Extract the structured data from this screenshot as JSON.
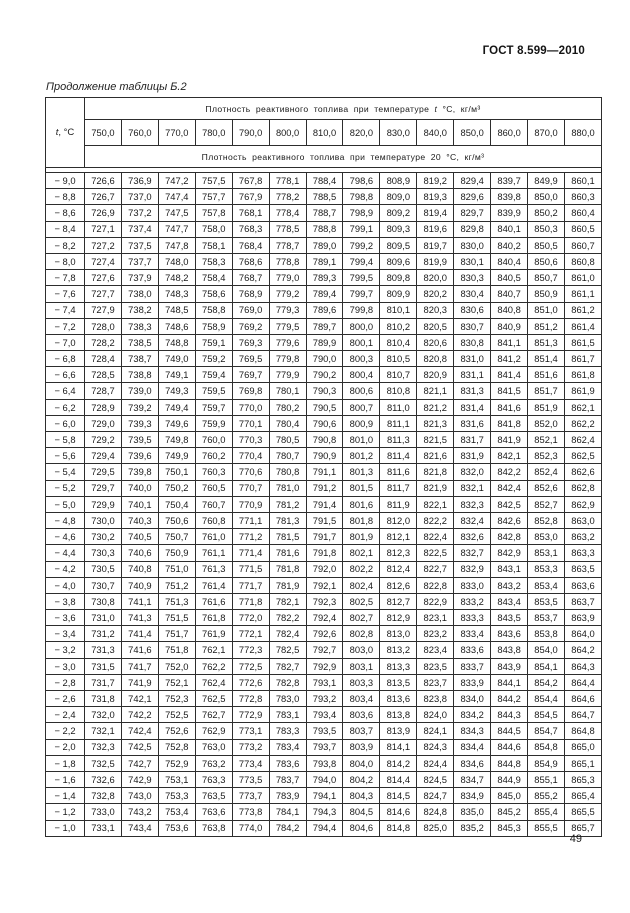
{
  "header": {
    "document_number": "ГОСТ 8.599—2010"
  },
  "caption": "Продолжение таблицы Б.2",
  "footer": {
    "page_number": "49"
  },
  "table": {
    "t_label_var": "t",
    "t_label_rest": ", °С",
    "top_header_prefix": "Плотность реактивного топлива при температуре ",
    "top_header_var": "t",
    "top_header_suffix": " °С, кг/м³",
    "sub_header": "Плотность реактивного топлива при температуре 20 °С, кг/м³",
    "temperatures": [
      "750,0",
      "760,0",
      "770,0",
      "780,0",
      "790,0",
      "800,0",
      "810,0",
      "820,0",
      "830,0",
      "840,0",
      "850,0",
      "860,0",
      "870,0",
      "880,0"
    ],
    "rows": [
      {
        "t": "− 9,0",
        "values": [
          "726,6",
          "736,9",
          "747,2",
          "757,5",
          "767,8",
          "778,1",
          "788,4",
          "798,6",
          "808,9",
          "819,2",
          "829,4",
          "839,7",
          "849,9",
          "860,1"
        ]
      },
      {
        "t": "− 8,8",
        "values": [
          "726,7",
          "737,0",
          "747,4",
          "757,7",
          "767,9",
          "778,2",
          "788,5",
          "798,8",
          "809,0",
          "819,3",
          "829,6",
          "839,8",
          "850,0",
          "860,3"
        ]
      },
      {
        "t": "− 8,6",
        "values": [
          "726,9",
          "737,2",
          "747,5",
          "757,8",
          "768,1",
          "778,4",
          "788,7",
          "798,9",
          "809,2",
          "819,4",
          "829,7",
          "839,9",
          "850,2",
          "860,4"
        ]
      },
      {
        "t": "− 8,4",
        "values": [
          "727,1",
          "737,4",
          "747,7",
          "758,0",
          "768,3",
          "778,5",
          "788,8",
          "799,1",
          "809,3",
          "819,6",
          "829,8",
          "840,1",
          "850,3",
          "860,5"
        ]
      },
      {
        "t": "− 8,2",
        "values": [
          "727,2",
          "737,5",
          "747,8",
          "758,1",
          "768,4",
          "778,7",
          "789,0",
          "799,2",
          "809,5",
          "819,7",
          "830,0",
          "840,2",
          "850,5",
          "860,7"
        ]
      },
      {
        "t": "− 8,0",
        "values": [
          "727,4",
          "737,7",
          "748,0",
          "758,3",
          "768,6",
          "778,8",
          "789,1",
          "799,4",
          "809,6",
          "819,9",
          "830,1",
          "840,4",
          "850,6",
          "860,8"
        ]
      },
      {
        "t": "− 7,8",
        "values": [
          "727,6",
          "737,9",
          "748,2",
          "758,4",
          "768,7",
          "779,0",
          "789,3",
          "799,5",
          "809,8",
          "820,0",
          "830,3",
          "840,5",
          "850,7",
          "861,0"
        ]
      },
      {
        "t": "− 7,6",
        "values": [
          "727,7",
          "738,0",
          "748,3",
          "758,6",
          "768,9",
          "779,2",
          "789,4",
          "799,7",
          "809,9",
          "820,2",
          "830,4",
          "840,7",
          "850,9",
          "861,1"
        ]
      },
      {
        "t": "− 7,4",
        "values": [
          "727,9",
          "738,2",
          "748,5",
          "758,8",
          "769,0",
          "779,3",
          "789,6",
          "799,8",
          "810,1",
          "820,3",
          "830,6",
          "840,8",
          "851,0",
          "861,2"
        ]
      },
      {
        "t": "− 7,2",
        "values": [
          "728,0",
          "738,3",
          "748,6",
          "758,9",
          "769,2",
          "779,5",
          "789,7",
          "800,0",
          "810,2",
          "820,5",
          "830,7",
          "840,9",
          "851,2",
          "861,4"
        ]
      },
      {
        "t": "− 7,0",
        "values": [
          "728,2",
          "738,5",
          "748,8",
          "759,1",
          "769,3",
          "779,6",
          "789,9",
          "800,1",
          "810,4",
          "820,6",
          "830,8",
          "841,1",
          "851,3",
          "861,5"
        ]
      },
      {
        "t": "− 6,8",
        "values": [
          "728,4",
          "738,7",
          "749,0",
          "759,2",
          "769,5",
          "779,8",
          "790,0",
          "800,3",
          "810,5",
          "820,8",
          "831,0",
          "841,2",
          "851,4",
          "861,7"
        ]
      },
      {
        "t": "− 6,6",
        "values": [
          "728,5",
          "738,8",
          "749,1",
          "759,4",
          "769,7",
          "779,9",
          "790,2",
          "800,4",
          "810,7",
          "820,9",
          "831,1",
          "841,4",
          "851,6",
          "861,8"
        ]
      },
      {
        "t": "− 6,4",
        "values": [
          "728,7",
          "739,0",
          "749,3",
          "759,5",
          "769,8",
          "780,1",
          "790,3",
          "800,6",
          "810,8",
          "821,1",
          "831,3",
          "841,5",
          "851,7",
          "861,9"
        ]
      },
      {
        "t": "− 6,2",
        "values": [
          "728,9",
          "739,2",
          "749,4",
          "759,7",
          "770,0",
          "780,2",
          "790,5",
          "800,7",
          "811,0",
          "821,2",
          "831,4",
          "841,6",
          "851,9",
          "862,1"
        ]
      },
      {
        "t": "− 6,0",
        "values": [
          "729,0",
          "739,3",
          "749,6",
          "759,9",
          "770,1",
          "780,4",
          "790,6",
          "800,9",
          "811,1",
          "821,3",
          "831,6",
          "841,8",
          "852,0",
          "862,2"
        ]
      },
      {
        "t": "− 5,8",
        "values": [
          "729,2",
          "739,5",
          "749,8",
          "760,0",
          "770,3",
          "780,5",
          "790,8",
          "801,0",
          "811,3",
          "821,5",
          "831,7",
          "841,9",
          "852,1",
          "862,4"
        ]
      },
      {
        "t": "− 5,6",
        "values": [
          "729,4",
          "739,6",
          "749,9",
          "760,2",
          "770,4",
          "780,7",
          "790,9",
          "801,2",
          "811,4",
          "821,6",
          "831,9",
          "842,1",
          "852,3",
          "862,5"
        ]
      },
      {
        "t": "− 5,4",
        "values": [
          "729,5",
          "739,8",
          "750,1",
          "760,3",
          "770,6",
          "780,8",
          "791,1",
          "801,3",
          "811,6",
          "821,8",
          "832,0",
          "842,2",
          "852,4",
          "862,6"
        ]
      },
      {
        "t": "− 5,2",
        "values": [
          "729,7",
          "740,0",
          "750,2",
          "760,5",
          "770,7",
          "781,0",
          "791,2",
          "801,5",
          "811,7",
          "821,9",
          "832,1",
          "842,4",
          "852,6",
          "862,8"
        ]
      },
      {
        "t": "− 5,0",
        "values": [
          "729,9",
          "740,1",
          "750,4",
          "760,7",
          "770,9",
          "781,2",
          "791,4",
          "801,6",
          "811,9",
          "822,1",
          "832,3",
          "842,5",
          "852,7",
          "862,9"
        ]
      },
      {
        "t": "− 4,8",
        "values": [
          "730,0",
          "740,3",
          "750,6",
          "760,8",
          "771,1",
          "781,3",
          "791,5",
          "801,8",
          "812,0",
          "822,2",
          "832,4",
          "842,6",
          "852,8",
          "863,0"
        ]
      },
      {
        "t": "− 4,6",
        "values": [
          "730,2",
          "740,5",
          "750,7",
          "761,0",
          "771,2",
          "781,5",
          "791,7",
          "801,9",
          "812,1",
          "822,4",
          "832,6",
          "842,8",
          "853,0",
          "863,2"
        ]
      },
      {
        "t": "− 4,4",
        "values": [
          "730,3",
          "740,6",
          "750,9",
          "761,1",
          "771,4",
          "781,6",
          "791,8",
          "802,1",
          "812,3",
          "822,5",
          "832,7",
          "842,9",
          "853,1",
          "863,3"
        ]
      },
      {
        "t": "− 4,2",
        "values": [
          "730,5",
          "740,8",
          "751,0",
          "761,3",
          "771,5",
          "781,8",
          "792,0",
          "802,2",
          "812,4",
          "822,7",
          "832,9",
          "843,1",
          "853,3",
          "863,5"
        ]
      },
      {
        "t": "− 4,0",
        "values": [
          "730,7",
          "740,9",
          "751,2",
          "761,4",
          "771,7",
          "781,9",
          "792,1",
          "802,4",
          "812,6",
          "822,8",
          "833,0",
          "843,2",
          "853,4",
          "863,6"
        ]
      },
      {
        "t": "− 3,8",
        "values": [
          "730,8",
          "741,1",
          "751,3",
          "761,6",
          "771,8",
          "782,1",
          "792,3",
          "802,5",
          "812,7",
          "822,9",
          "833,2",
          "843,4",
          "853,5",
          "863,7"
        ]
      },
      {
        "t": "− 3,6",
        "values": [
          "731,0",
          "741,3",
          "751,5",
          "761,8",
          "772,0",
          "782,2",
          "792,4",
          "802,7",
          "812,9",
          "823,1",
          "833,3",
          "843,5",
          "853,7",
          "863,9"
        ]
      },
      {
        "t": "− 3,4",
        "values": [
          "731,2",
          "741,4",
          "751,7",
          "761,9",
          "772,1",
          "782,4",
          "792,6",
          "802,8",
          "813,0",
          "823,2",
          "833,4",
          "843,6",
          "853,8",
          "864,0"
        ]
      },
      {
        "t": "− 3,2",
        "values": [
          "731,3",
          "741,6",
          "751,8",
          "762,1",
          "772,3",
          "782,5",
          "792,7",
          "803,0",
          "813,2",
          "823,4",
          "833,6",
          "843,8",
          "854,0",
          "864,2"
        ]
      },
      {
        "t": "− 3,0",
        "values": [
          "731,5",
          "741,7",
          "752,0",
          "762,2",
          "772,5",
          "782,7",
          "792,9",
          "803,1",
          "813,3",
          "823,5",
          "833,7",
          "843,9",
          "854,1",
          "864,3"
        ]
      },
      {
        "t": "− 2,8",
        "values": [
          "731,7",
          "741,9",
          "752,1",
          "762,4",
          "772,6",
          "782,8",
          "793,1",
          "803,3",
          "813,5",
          "823,7",
          "833,9",
          "844,1",
          "854,2",
          "864,4"
        ]
      },
      {
        "t": "− 2,6",
        "values": [
          "731,8",
          "742,1",
          "752,3",
          "762,5",
          "772,8",
          "783,0",
          "793,2",
          "803,4",
          "813,6",
          "823,8",
          "834,0",
          "844,2",
          "854,4",
          "864,6"
        ]
      },
      {
        "t": "− 2,4",
        "values": [
          "732,0",
          "742,2",
          "752,5",
          "762,7",
          "772,9",
          "783,1",
          "793,4",
          "803,6",
          "813,8",
          "824,0",
          "834,2",
          "844,3",
          "854,5",
          "864,7"
        ]
      },
      {
        "t": "− 2,2",
        "values": [
          "732,1",
          "742,4",
          "752,6",
          "762,9",
          "773,1",
          "783,3",
          "793,5",
          "803,7",
          "813,9",
          "824,1",
          "834,3",
          "844,5",
          "854,7",
          "864,8"
        ]
      },
      {
        "t": "− 2,0",
        "values": [
          "732,3",
          "742,5",
          "752,8",
          "763,0",
          "773,2",
          "783,4",
          "793,7",
          "803,9",
          "814,1",
          "824,3",
          "834,4",
          "844,6",
          "854,8",
          "865,0"
        ]
      },
      {
        "t": "− 1,8",
        "values": [
          "732,5",
          "742,7",
          "752,9",
          "763,2",
          "773,4",
          "783,6",
          "793,8",
          "804,0",
          "814,2",
          "824,4",
          "834,6",
          "844,8",
          "854,9",
          "865,1"
        ]
      },
      {
        "t": "− 1,6",
        "values": [
          "732,6",
          "742,9",
          "753,1",
          "763,3",
          "773,5",
          "783,7",
          "794,0",
          "804,2",
          "814,4",
          "824,5",
          "834,7",
          "844,9",
          "855,1",
          "865,3"
        ]
      },
      {
        "t": "− 1,4",
        "values": [
          "732,8",
          "743,0",
          "753,3",
          "763,5",
          "773,7",
          "783,9",
          "794,1",
          "804,3",
          "814,5",
          "824,7",
          "834,9",
          "845,0",
          "855,2",
          "865,4"
        ]
      },
      {
        "t": "− 1,2",
        "values": [
          "733,0",
          "743,2",
          "753,4",
          "763,6",
          "773,8",
          "784,1",
          "794,3",
          "804,5",
          "814,6",
          "824,8",
          "835,0",
          "845,2",
          "855,4",
          "865,5"
        ]
      },
      {
        "t": "− 1,0",
        "values": [
          "733,1",
          "743,4",
          "753,6",
          "763,8",
          "774,0",
          "784,2",
          "794,4",
          "804,6",
          "814,8",
          "825,0",
          "835,2",
          "845,3",
          "855,5",
          "865,7"
        ]
      }
    ]
  }
}
